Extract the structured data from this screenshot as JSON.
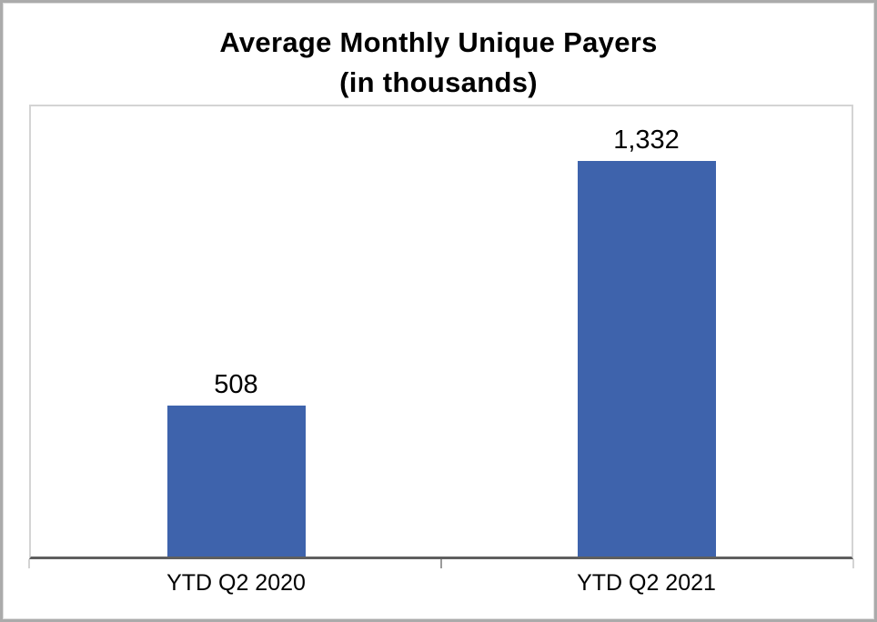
{
  "chart_data": {
    "type": "bar",
    "title": "Average Monthly Unique Payers (in thousands)",
    "title_lines": [
      "Average Monthly Unique Payers",
      "(in thousands)"
    ],
    "categories": [
      "YTD Q2 2020",
      "YTD Q2 2021"
    ],
    "values": [
      508,
      1332
    ],
    "value_labels": [
      "508",
      "1,332"
    ],
    "xlabel": "",
    "ylabel": "",
    "ylim": [
      0,
      1515
    ],
    "grid": false,
    "legend": false,
    "bar_color": "#3E63AC",
    "axis_color": "#5F5F5F",
    "plot_border_color": "#D4D4D4",
    "frame_border_color": "#ABABAB",
    "tick_color": "#9B9B9B",
    "text_color": "#000000"
  }
}
